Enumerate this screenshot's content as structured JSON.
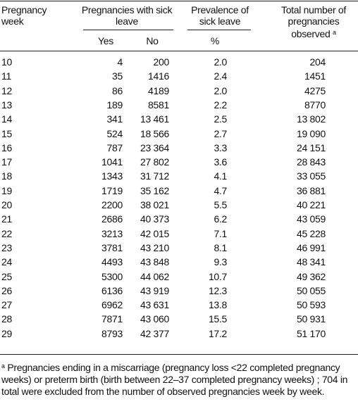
{
  "table": {
    "header": {
      "week": "Pregnancy week",
      "sick_leave": "Pregnancies with sick leave",
      "yes": "Yes",
      "no": "No",
      "prevalence": "Prevalence of sick leave",
      "percent": "%",
      "total": "Total number of pregnancies observed",
      "total_note": "a"
    },
    "rows": [
      [
        "10",
        "4",
        "200",
        "2.0",
        "204"
      ],
      [
        "11",
        "35",
        "1416",
        "2.4",
        "1451"
      ],
      [
        "12",
        "86",
        "4189",
        "2.0",
        "4275"
      ],
      [
        "13",
        "189",
        "8581",
        "2.2",
        "8770"
      ],
      [
        "14",
        "341",
        "13 461",
        "2.5",
        "13 802"
      ],
      [
        "15",
        "524",
        "18 566",
        "2.7",
        "19 090"
      ],
      [
        "16",
        "787",
        "23 364",
        "3.3",
        "24 151"
      ],
      [
        "17",
        "1041",
        "27 802",
        "3.6",
        "28 843"
      ],
      [
        "18",
        "1343",
        "31 712",
        "4.1",
        "33 055"
      ],
      [
        "19",
        "1719",
        "35 162",
        "4.7",
        "36 881"
      ],
      [
        "20",
        "2200",
        "38 021",
        "5.5",
        "40 221"
      ],
      [
        "21",
        "2686",
        "40 373",
        "6.2",
        "43 059"
      ],
      [
        "22",
        "3213",
        "42 015",
        "7.1",
        "45 228"
      ],
      [
        "23",
        "3781",
        "43 210",
        "8.1",
        "46 991"
      ],
      [
        "24",
        "4493",
        "43 848",
        "9.3",
        "48 341"
      ],
      [
        "25",
        "5300",
        "44 062",
        "10.7",
        "49 362"
      ],
      [
        "26",
        "6136",
        "43 919",
        "12.3",
        "50 055"
      ],
      [
        "27",
        "6962",
        "43 631",
        "13.8",
        "50 593"
      ],
      [
        "28",
        "7871",
        "43 060",
        "15.5",
        "50 931"
      ],
      [
        "29",
        "8793",
        "42 377",
        "17.2",
        "51 170"
      ]
    ]
  },
  "footnote": {
    "mark": "a",
    "text": "Pregnancies ending in a miscarriage (pregnancy loss <22 completed pregnancy weeks) or preterm birth (birth between 22–37 completed pregnancy weeks) ; 704 in total were excluded from the number of observed pregnancies week by week."
  }
}
